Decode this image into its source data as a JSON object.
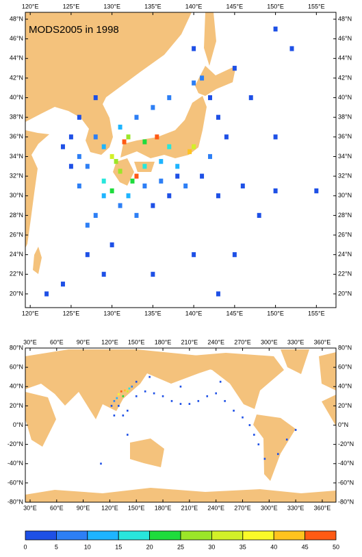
{
  "maps": [
    {
      "title": "MODS2005 in 1998",
      "lonlim": [
        119.4,
        157.4
      ],
      "latlim": [
        18.6,
        48.7
      ],
      "xticks": [
        {
          "value": 120,
          "label": "120°E"
        },
        {
          "value": 125,
          "label": "125°E"
        },
        {
          "value": 130,
          "label": "130°E"
        },
        {
          "value": 135,
          "label": "135°E"
        },
        {
          "value": 140,
          "label": "140°E"
        },
        {
          "value": 145,
          "label": "145°E"
        },
        {
          "value": 150,
          "label": "150°E"
        },
        {
          "value": 155,
          "label": "155°E"
        }
      ],
      "yticks": [
        {
          "value": 20,
          "label": "20°N"
        },
        {
          "value": 22,
          "label": "22°N"
        },
        {
          "value": 24,
          "label": "24°N"
        },
        {
          "value": 26,
          "label": "26°N"
        },
        {
          "value": 28,
          "label": "28°N"
        },
        {
          "value": 30,
          "label": "30°N"
        },
        {
          "value": 32,
          "label": "32°N"
        },
        {
          "value": 34,
          "label": "34°N"
        },
        {
          "value": 36,
          "label": "36°N"
        },
        {
          "value": 38,
          "label": "38°N"
        },
        {
          "value": 40,
          "label": "40°N"
        },
        {
          "value": 42,
          "label": "42°N"
        },
        {
          "value": 44,
          "label": "44°N"
        },
        {
          "value": 46,
          "label": "46°N"
        },
        {
          "value": 48,
          "label": "48°N"
        }
      ],
      "cells": [
        [
          131.5,
          35.5,
          48
        ],
        [
          135.5,
          36,
          45
        ],
        [
          133,
          32,
          47
        ],
        [
          130,
          34,
          30
        ],
        [
          139.5,
          34.5,
          42
        ],
        [
          132,
          36,
          25
        ],
        [
          134,
          35.5,
          22
        ],
        [
          131,
          32.5,
          28
        ],
        [
          132.5,
          31.5,
          20
        ],
        [
          137,
          35,
          18
        ],
        [
          140,
          35,
          30
        ],
        [
          138,
          33,
          12
        ],
        [
          136,
          33.5,
          14
        ],
        [
          134,
          33,
          15
        ],
        [
          130.5,
          33.5,
          26
        ],
        [
          129,
          35,
          12
        ],
        [
          128,
          36,
          8
        ],
        [
          131,
          37,
          10
        ],
        [
          133,
          38,
          9
        ],
        [
          135,
          39,
          6
        ],
        [
          137,
          40,
          7
        ],
        [
          140,
          41.5,
          6
        ],
        [
          141,
          42,
          9
        ],
        [
          142,
          40,
          4
        ],
        [
          143,
          38,
          3
        ],
        [
          144,
          36,
          4
        ],
        [
          142,
          34,
          8
        ],
        [
          141,
          32,
          4
        ],
        [
          139,
          31,
          5
        ],
        [
          137,
          30,
          3
        ],
        [
          135,
          29,
          4
        ],
        [
          133,
          28,
          6
        ],
        [
          131,
          29,
          9
        ],
        [
          129,
          30,
          13
        ],
        [
          128,
          28,
          7
        ],
        [
          127,
          27,
          5
        ],
        [
          126,
          31,
          8
        ],
        [
          125,
          33,
          4
        ],
        [
          126,
          34,
          6
        ],
        [
          124,
          35,
          3
        ],
        [
          125,
          36,
          2
        ],
        [
          127,
          33,
          9
        ],
        [
          129,
          31.5,
          16
        ],
        [
          130,
          30.5,
          22
        ],
        [
          132,
          30,
          11
        ],
        [
          134,
          31,
          6
        ],
        [
          136,
          31.5,
          5
        ],
        [
          138,
          32,
          3
        ],
        [
          143,
          30,
          2
        ],
        [
          146,
          31,
          2
        ],
        [
          150,
          30.5,
          2
        ],
        [
          155,
          30.5,
          2
        ],
        [
          129,
          22,
          2
        ],
        [
          130,
          25,
          3
        ],
        [
          135,
          22,
          2
        ],
        [
          140,
          24,
          2
        ],
        [
          143,
          20,
          3
        ],
        [
          145,
          24,
          2
        ],
        [
          148,
          28,
          2
        ],
        [
          150,
          36,
          2
        ],
        [
          147,
          40,
          2
        ],
        [
          152,
          45,
          2
        ],
        [
          150,
          47,
          3
        ],
        [
          140,
          45,
          2
        ],
        [
          145,
          43,
          3
        ],
        [
          128,
          40,
          3
        ],
        [
          126,
          38,
          2
        ],
        [
          124,
          21,
          4
        ],
        [
          122,
          20,
          2
        ],
        [
          127,
          24,
          3
        ]
      ]
    },
    {
      "lonlim": [
        24.6,
        375.5
      ],
      "latlim": [
        -80,
        80
      ],
      "xticks": [
        {
          "value": 30,
          "label": "30°E"
        },
        {
          "value": 60,
          "label": "60°E"
        },
        {
          "value": 90,
          "label": "90°E"
        },
        {
          "value": 120,
          "label": "120°E"
        },
        {
          "value": 150,
          "label": "150°E"
        },
        {
          "value": 180,
          "label": "180°E"
        },
        {
          "value": 210,
          "label": "210°E"
        },
        {
          "value": 240,
          "label": "240°E"
        },
        {
          "value": 270,
          "label": "270°E"
        },
        {
          "value": 300,
          "label": "300°E"
        },
        {
          "value": 330,
          "label": "330°E"
        },
        {
          "value": 360,
          "label": "360°E"
        }
      ],
      "yticks": [
        {
          "value": 80,
          "label": "80°N"
        },
        {
          "value": 60,
          "label": "60°N"
        },
        {
          "value": 40,
          "label": "40°N"
        },
        {
          "value": 20,
          "label": "20°N"
        },
        {
          "value": 0,
          "label": "0°N"
        },
        {
          "value": -20,
          "label": "-20°N"
        },
        {
          "value": -40,
          "label": "-40°N"
        },
        {
          "value": -60,
          "label": "-60°N"
        },
        {
          "value": -80,
          "label": "-80°N"
        }
      ],
      "cells": [
        [
          133,
          35,
          48
        ],
        [
          137,
          36,
          40
        ],
        [
          130,
          32,
          35
        ],
        [
          140,
          35,
          30
        ],
        [
          135,
          30,
          20
        ],
        [
          128,
          28,
          12
        ],
        [
          142,
          38,
          15
        ],
        [
          145,
          40,
          8
        ],
        [
          125,
          25,
          6
        ],
        [
          122,
          20,
          4
        ],
        [
          130,
          20,
          3
        ],
        [
          135,
          10,
          2
        ],
        [
          125,
          10,
          2
        ],
        [
          140,
          15,
          2
        ],
        [
          150,
          30,
          3
        ],
        [
          160,
          35,
          2
        ],
        [
          170,
          33,
          2
        ],
        [
          180,
          30,
          2
        ],
        [
          190,
          25,
          2
        ],
        [
          200,
          22,
          2
        ],
        [
          210,
          22,
          2
        ],
        [
          220,
          25,
          2
        ],
        [
          230,
          30,
          2
        ],
        [
          240,
          33,
          2
        ],
        [
          250,
          25,
          2
        ],
        [
          260,
          15,
          2
        ],
        [
          270,
          8,
          2
        ],
        [
          278,
          0,
          2
        ],
        [
          283,
          -10,
          2
        ],
        [
          288,
          -20,
          2
        ],
        [
          295,
          -35,
          2
        ],
        [
          310,
          -30,
          2
        ],
        [
          320,
          -15,
          2
        ],
        [
          330,
          -5,
          2
        ],
        [
          165,
          50,
          2
        ],
        [
          150,
          45,
          2
        ],
        [
          200,
          40,
          2
        ],
        [
          245,
          45,
          2
        ],
        [
          140,
          -10,
          2
        ],
        [
          110,
          -40,
          2
        ]
      ]
    }
  ],
  "colorbar": {
    "bounds": [
      0,
      5,
      10,
      15,
      20,
      25,
      30,
      35,
      40,
      45,
      50
    ],
    "colors": [
      "#1e50e6",
      "#2d7ff5",
      "#1eb4ff",
      "#28e6dc",
      "#1edc3c",
      "#9be628",
      "#d2f028",
      "#fafa28",
      "#ffc31e",
      "#ff5a14"
    ]
  }
}
